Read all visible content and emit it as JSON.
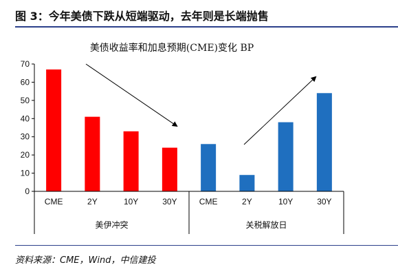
{
  "figure_title": "图 3：今年美债下跌从短端驱动，去年则是长端抛售",
  "source": "资料来源：CME，Wind，中信建投",
  "chart_data": {
    "type": "bar",
    "title": "美债收益率和加息预期(CME)变化 BP",
    "categories": [
      "CME",
      "2Y",
      "10Y",
      "30Y",
      "CME",
      "2Y",
      "10Y",
      "30Y"
    ],
    "groups": [
      {
        "label": "美伊冲突",
        "categories": [
          "CME",
          "2Y",
          "10Y",
          "30Y"
        ],
        "color": "#ff0000"
      },
      {
        "label": "关税解放日",
        "categories": [
          "CME",
          "2Y",
          "10Y",
          "30Y"
        ],
        "color": "#1f6fbf"
      }
    ],
    "values": [
      67,
      41,
      33,
      24,
      26,
      9,
      38,
      54
    ],
    "colors": [
      "#ff0000",
      "#ff0000",
      "#ff0000",
      "#ff0000",
      "#1f6fbf",
      "#1f6fbf",
      "#1f6fbf",
      "#1f6fbf"
    ],
    "ylim": [
      0,
      70
    ],
    "yticks": [
      0,
      10,
      20,
      30,
      40,
      50,
      60,
      70
    ],
    "xlabel": "",
    "ylabel": "",
    "grid": false,
    "legend": "none",
    "annotations": [
      "down-arrow",
      "up-arrow"
    ]
  }
}
